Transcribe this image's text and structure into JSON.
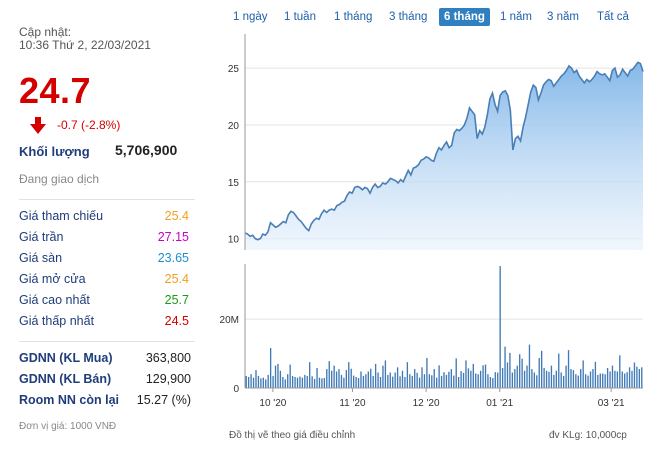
{
  "header": {
    "update_label": "Cập nhật:",
    "update_time": "10:36 Thứ 2, 22/03/2021",
    "price": "24.7",
    "change": "-0.7 (-2.8%)",
    "volume_label": "Khối lượng",
    "volume_value": "5,706,900",
    "status": "Đang giao dịch"
  },
  "price_rows": [
    {
      "label": "Giá tham chiếu",
      "value": "25.4",
      "color": "#f0a020"
    },
    {
      "label": "Giá trần",
      "value": "27.15",
      "color": "#c800c8"
    },
    {
      "label": "Giá sàn",
      "value": "23.65",
      "color": "#1f8fd0"
    },
    {
      "label": "Giá mở cửa",
      "value": "25.4",
      "color": "#f0a020"
    },
    {
      "label": "Giá cao nhất",
      "value": "25.7",
      "color": "#1a9a1a"
    },
    {
      "label": "Giá thấp nhất",
      "value": "24.5",
      "color": "#d40000"
    }
  ],
  "foreign_rows": [
    {
      "label": "GDNN (KL Mua)",
      "value": "363,800"
    },
    {
      "label": "GDNN (KL Bán)",
      "value": "129,900"
    },
    {
      "label": "Room NN còn lại",
      "value": "15.27 (%)"
    }
  ],
  "unit_note": "Đơn vị giá: 1000 VNĐ",
  "tabs": [
    {
      "label": "1 ngày",
      "active": false
    },
    {
      "label": "1 tuần",
      "active": false
    },
    {
      "label": "1 tháng",
      "active": false
    },
    {
      "label": "3 tháng",
      "active": false
    },
    {
      "label": "6 tháng",
      "active": true
    },
    {
      "label": "1 năm",
      "active": false
    },
    {
      "label": "3 năm",
      "active": false
    },
    {
      "label": "Tất cả",
      "active": false
    }
  ],
  "footer": {
    "left": "Đồ thị vẽ theo giá điều chỉnh",
    "right": "đv KLg: 10,000cp"
  },
  "colors": {
    "price_down": "#d40000",
    "line": "#4a7fb5",
    "volume_bar": "#3f79b6",
    "active_tab": "#2f7fc1"
  },
  "chart_data": [
    {
      "type": "area",
      "title": "",
      "xlabel": "",
      "ylabel": "",
      "ylim": [
        9,
        28
      ],
      "yticks": [
        10,
        15,
        20,
        25
      ],
      "xticks": [
        "10 '20",
        "11 '20",
        "12 '20",
        "01 '21",
        "03 '21"
      ],
      "grid": true,
      "values": [
        10.5,
        10.4,
        10.2,
        10.3,
        10.0,
        9.9,
        10.0,
        10.4,
        10.3,
        10.6,
        11.4,
        11.2,
        11.0,
        11.1,
        11.3,
        11.5,
        11.4,
        12.1,
        12.4,
        12.3,
        12.0,
        11.7,
        11.5,
        11.2,
        10.9,
        10.7,
        11.3,
        11.6,
        11.8,
        11.7,
        12.2,
        12.5,
        12.3,
        12.5,
        12.6,
        12.5,
        12.9,
        13.0,
        13.2,
        13.3,
        13.8,
        14.1,
        14.0,
        14.5,
        14.6,
        14.5,
        14.3,
        14.5,
        14.4,
        14.0,
        14.5,
        14.8,
        14.5,
        14.6,
        14.9,
        14.8,
        15.0,
        15.3,
        15.2,
        15.1,
        14.9,
        15.2,
        15.0,
        15.5,
        16.0,
        15.6,
        16.2,
        16.3,
        16.5,
        16.9,
        17.0,
        17.2,
        17.1,
        16.9,
        16.8,
        17.5,
        18.0,
        17.8,
        18.2,
        18.5,
        18.0,
        18.2,
        19.3,
        19.6,
        19.5,
        19.7,
        20.0,
        20.6,
        21.5,
        21.2,
        20.9,
        18.8,
        19.5,
        19.2,
        19.8,
        20.9,
        22.3,
        22.8,
        21.8,
        21.2,
        22.6,
        22.9,
        23.0,
        22.6,
        21.3,
        17.8,
        18.8,
        19.0,
        18.6,
        19.8,
        20.7,
        21.8,
        22.9,
        23.5,
        23.3,
        22.2,
        22.8,
        23.5,
        23.8,
        24.0,
        23.9,
        23.4,
        23.7,
        24.0,
        24.3,
        24.5,
        24.8,
        25.2,
        25.0,
        24.6,
        24.8,
        24.3,
        24.0,
        23.7,
        24.0,
        23.8,
        24.0,
        24.3,
        24.7,
        24.5,
        24.4,
        24.5,
        24.2,
        23.9,
        24.8,
        25.0,
        24.2,
        24.4,
        24.9,
        24.6,
        24.3,
        24.8,
        24.9,
        25.2,
        25.5,
        25.4,
        24.7
      ]
    },
    {
      "type": "bar",
      "title": "",
      "xlabel": "",
      "ylabel": "",
      "ylim": [
        0,
        36
      ],
      "yticks": [
        0,
        20
      ],
      "ytick_labels": [
        "0",
        "20M"
      ],
      "values": [
        3.5,
        3.2,
        4.0,
        3.0,
        5.2,
        3.5,
        2.8,
        3.0,
        2.5,
        3.8,
        11.6,
        3.5,
        6.5,
        7.0,
        5.0,
        3.2,
        2.5,
        4.0,
        6.8,
        3.5,
        3.2,
        3.0,
        3.3,
        3.0,
        3.8,
        3.5,
        7.5,
        3.4,
        2.6,
        5.8,
        3.0,
        2.8,
        2.9,
        5.5,
        7.8,
        5.0,
        6.5,
        4.8,
        5.5,
        3.8,
        3.0,
        5.2,
        7.5,
        5.6,
        3.6,
        3.2,
        2.9,
        4.8,
        3.5,
        4.0,
        4.8,
        5.6,
        3.5,
        7.0,
        4.5,
        3.2,
        6.5,
        8.0,
        3.8,
        4.5,
        3.3,
        4.5,
        6.0,
        3.4,
        5.0,
        3.2,
        7.5,
        4.0,
        3.5,
        5.5,
        4.4,
        3.0,
        6.0,
        4.0,
        8.7,
        4.0,
        3.7,
        5.5,
        3.0,
        6.6,
        3.5,
        4.6,
        3.8,
        4.7,
        5.5,
        3.6,
        8.6,
        3.2,
        4.9,
        4.4,
        8.0,
        5.7,
        5.0,
        7.0,
        4.2,
        4.0,
        5.0,
        6.6,
        6.8,
        4.0,
        3.2,
        2.9,
        4.6,
        4.5,
        35.4,
        5.8,
        12.0,
        7.4,
        10.2,
        4.5,
        5.5,
        6.5,
        9.8,
        8.5,
        5.0,
        6.5,
        12.6,
        5.5,
        4.5,
        3.7,
        8.7,
        10.8,
        5.8,
        5.0,
        4.7,
        6.5,
        3.8,
        5.0,
        10.0,
        4.5,
        3.5,
        6.5,
        11.0,
        5.5,
        5.2,
        4.0,
        3.6,
        5.5,
        8.0,
        4.0,
        3.6,
        4.8,
        5.5,
        7.6,
        3.8,
        4.2,
        4.2,
        4.0,
        5.8,
        4.8,
        6.5,
        5.0,
        4.8,
        9.5,
        4.8,
        4.2,
        4.6,
        6.0,
        5.0,
        7.4,
        6.2,
        5.5,
        6.0
      ]
    }
  ]
}
